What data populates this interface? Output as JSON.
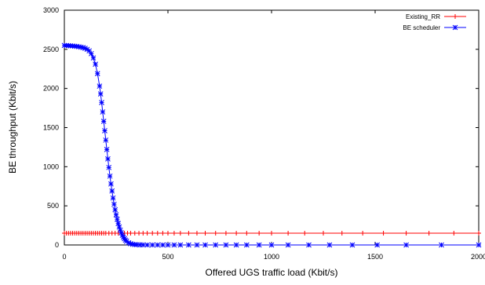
{
  "chart_data": {
    "type": "line",
    "xlabel": "Offered UGS traffic load (Kbit/s)",
    "ylabel": "BE throughput (Kbit/s)",
    "xlim": [
      0,
      2000
    ],
    "ylim": [
      0,
      3000
    ],
    "x_ticks": [
      "0",
      "500",
      "1000",
      "1500",
      "2000"
    ],
    "y_ticks": [
      "0",
      "500",
      "1000",
      "1500",
      "2000",
      "2500",
      "3000"
    ],
    "grid": false,
    "legend_position": "top-right",
    "series": [
      {
        "name": "Existing_RR",
        "color": "#ff0000",
        "marker": "plus",
        "x": [
          0,
          10,
          20,
          30,
          40,
          50,
          60,
          70,
          80,
          90,
          100,
          110,
          120,
          130,
          140,
          150,
          160,
          170,
          180,
          190,
          200,
          215,
          230,
          245,
          260,
          275,
          290,
          305,
          320,
          340,
          360,
          380,
          400,
          425,
          450,
          475,
          500,
          530,
          560,
          600,
          640,
          680,
          730,
          780,
          830,
          880,
          940,
          1000,
          1080,
          1160,
          1250,
          1340,
          1440,
          1540,
          1650,
          1760,
          1880,
          2000
        ],
        "y": [
          150,
          150,
          150,
          150,
          150,
          150,
          150,
          150,
          150,
          150,
          150,
          150,
          150,
          150,
          150,
          150,
          150,
          150,
          150,
          150,
          150,
          150,
          150,
          150,
          150,
          150,
          150,
          150,
          150,
          150,
          150,
          150,
          150,
          150,
          150,
          150,
          150,
          150,
          150,
          150,
          150,
          150,
          150,
          150,
          150,
          150,
          150,
          150,
          150,
          150,
          150,
          150,
          150,
          150,
          150,
          150,
          150,
          150
        ]
      },
      {
        "name": "BE scheduler",
        "color": "#0000ff",
        "marker": "star",
        "x": [
          0,
          10,
          20,
          30,
          40,
          50,
          60,
          70,
          80,
          90,
          100,
          110,
          120,
          130,
          140,
          150,
          160,
          170,
          175,
          180,
          185,
          190,
          195,
          200,
          205,
          210,
          215,
          220,
          225,
          230,
          235,
          240,
          245,
          250,
          255,
          260,
          265,
          270,
          275,
          280,
          285,
          290,
          295,
          300,
          310,
          320,
          330,
          340,
          350,
          365,
          380,
          400,
          425,
          450,
          475,
          500,
          530,
          560,
          600,
          640,
          680,
          730,
          780,
          830,
          880,
          940,
          1000,
          1080,
          1180,
          1280,
          1390,
          1510,
          1650,
          1820,
          2000
        ],
        "y": [
          2550,
          2549,
          2547,
          2545,
          2543,
          2540,
          2537,
          2533,
          2528,
          2522,
          2513,
          2500,
          2480,
          2445,
          2390,
          2310,
          2190,
          2030,
          1930,
          1820,
          1700,
          1580,
          1460,
          1340,
          1220,
          1100,
          990,
          880,
          780,
          690,
          600,
          520,
          450,
          385,
          328,
          275,
          230,
          190,
          155,
          125,
          100,
          80,
          62,
          48,
          28,
          16,
          9,
          5,
          3,
          2,
          1,
          0,
          0,
          0,
          0,
          0,
          0,
          0,
          0,
          0,
          0,
          0,
          0,
          0,
          0,
          0,
          0,
          0,
          0,
          0,
          0,
          0,
          0,
          0,
          0
        ]
      }
    ]
  }
}
